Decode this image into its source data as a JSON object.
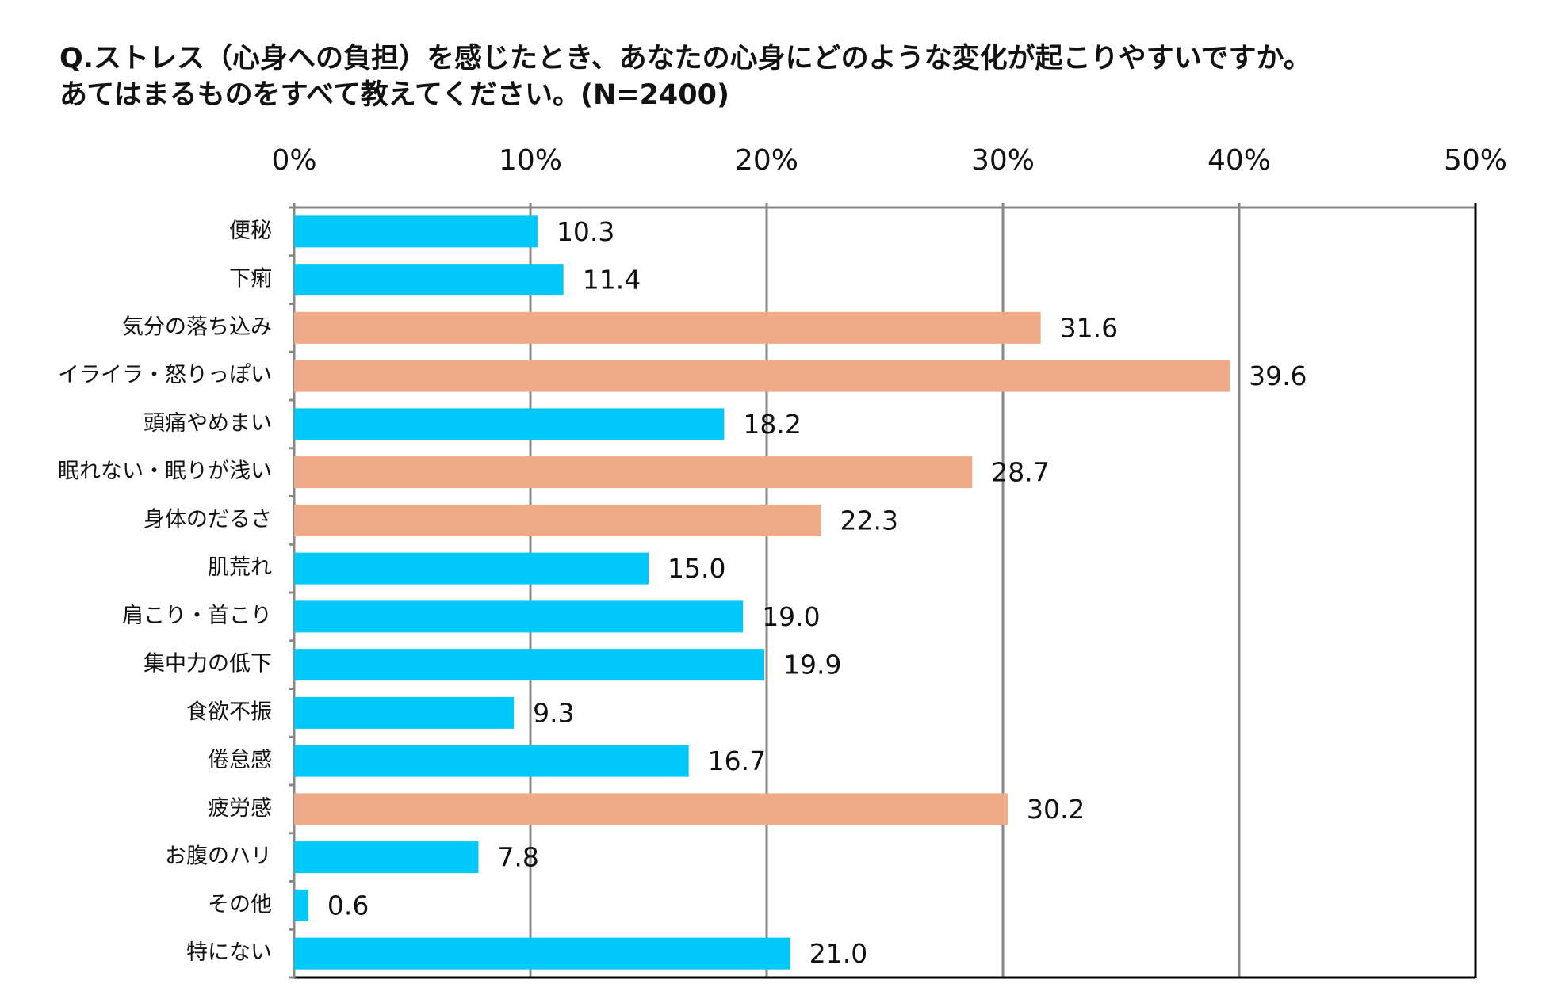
{
  "chart_data": {
    "type": "bar",
    "orientation": "horizontal",
    "title": [
      "Q.ストレス（心身への負担）を感じたとき、あなたの心身にどのような変化が起こりやすいですか。",
      "あてはまるものをすべて教えてください。(N=2400)"
    ],
    "categories": [
      "便秘",
      "下痢",
      "気分の落ち込み",
      "イライラ・怒りっぽい",
      "頭痛やめまい",
      "眠れない・眠りが浅い",
      "身体のだるさ",
      "肌荒れ",
      "肩こり・首こり",
      "集中力の低下",
      "食欲不振",
      "倦怠感",
      "疲労感",
      "お腹のハリ",
      "その他",
      "特にない"
    ],
    "values": [
      10.3,
      11.4,
      31.6,
      39.6,
      18.2,
      28.7,
      22.3,
      15.0,
      19.0,
      19.9,
      9.3,
      16.7,
      30.2,
      7.8,
      0.6,
      21.0
    ],
    "value_labels": [
      "10.3",
      "11.4",
      "31.6",
      "39.6",
      "18.2",
      "28.7",
      "22.3",
      "15.0",
      "19.0",
      "19.9",
      "9.3",
      "16.7",
      "30.2",
      "7.8",
      "0.6",
      "21.0"
    ],
    "colors": [
      "#00c8f8",
      "#00c8f8",
      "#f0aa88",
      "#f0aa88",
      "#00c8f8",
      "#f0aa88",
      "#f0aa88",
      "#00c8f8",
      "#00c8f8",
      "#00c8f8",
      "#00c8f8",
      "#00c8f8",
      "#f0aa88",
      "#00c8f8",
      "#00c8f8",
      "#00c8f8"
    ],
    "xlim": [
      0,
      50
    ],
    "xticks": [
      {
        "value": 0,
        "label": "0%"
      },
      {
        "value": 10,
        "label": "10%"
      },
      {
        "value": 20,
        "label": "20%"
      },
      {
        "value": 30,
        "label": "30%"
      },
      {
        "value": 40,
        "label": "40%"
      },
      {
        "value": 50,
        "label": "50%"
      }
    ],
    "grid": true
  }
}
